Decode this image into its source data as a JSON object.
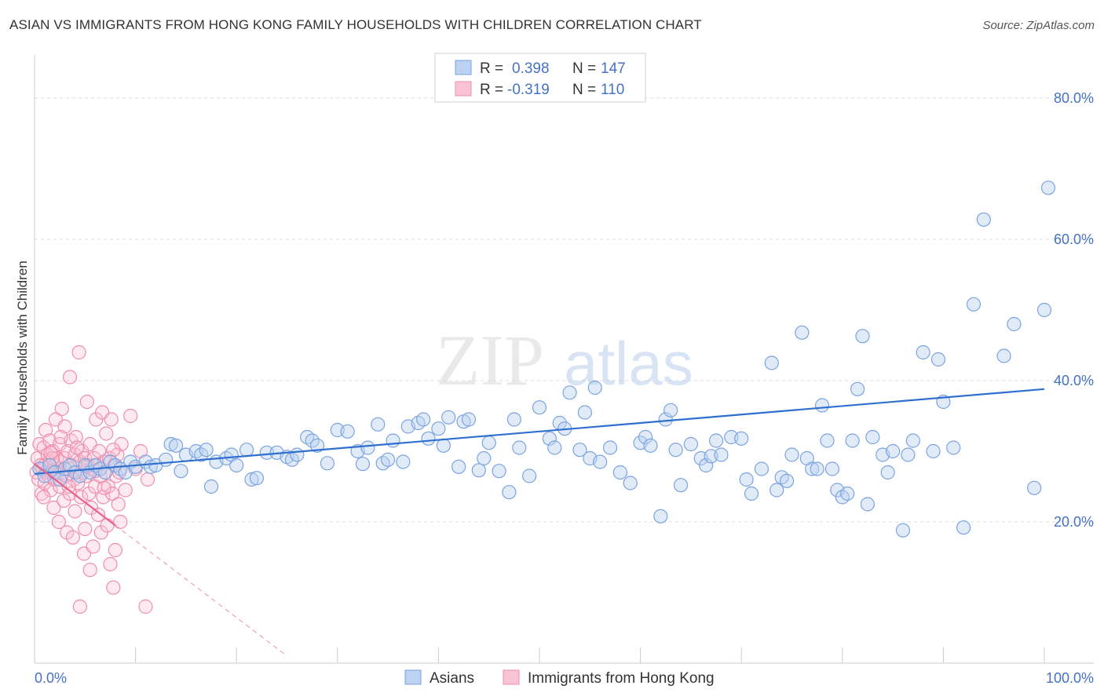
{
  "title": "ASIAN VS IMMIGRANTS FROM HONG KONG FAMILY HOUSEHOLDS WITH CHILDREN CORRELATION CHART",
  "source": "Source: ZipAtlas.com",
  "watermark": {
    "zip": "ZIP",
    "atlas": "atlas"
  },
  "chart_data": {
    "type": "scatter",
    "title": "ASIAN VS IMMIGRANTS FROM HONG KONG FAMILY HOUSEHOLDS WITH CHILDREN CORRELATION CHART",
    "xlabel": "",
    "ylabel": "Family Households with Children",
    "xlim": [
      0,
      100
    ],
    "ylim": [
      0,
      85
    ],
    "x_tick_labels": {
      "left": "0.0%",
      "right": "100.0%"
    },
    "y_ticks": [
      20,
      40,
      60,
      80
    ],
    "y_tick_labels": [
      "20.0%",
      "40.0%",
      "60.0%",
      "80.0%"
    ],
    "grid": true,
    "legend_position": "top-center",
    "stats": [
      {
        "r_label": "R =",
        "r_value": "0.398",
        "n_label": "N =",
        "n_value": "147"
      },
      {
        "r_label": "R =",
        "r_value": "-0.319",
        "n_label": "N =",
        "n_value": "110"
      }
    ],
    "series": [
      {
        "name": "Asians",
        "color": "#8fb3e8",
        "line_color": "#2f6fd0",
        "trend": {
          "x0": 0,
          "y0": 26.8,
          "x1": 100,
          "y1": 38.8,
          "dashed_extension": false
        },
        "points": [
          [
            0.5,
            27.5
          ],
          [
            1,
            26.5
          ],
          [
            1.5,
            28
          ],
          [
            2,
            27
          ],
          [
            2.5,
            26
          ],
          [
            3,
            27.5
          ],
          [
            3.5,
            28
          ],
          [
            4,
            27
          ],
          [
            4.5,
            26.5
          ],
          [
            5,
            28
          ],
          [
            5.5,
            27
          ],
          [
            6,
            28
          ],
          [
            6.5,
            27.5
          ],
          [
            7,
            27
          ],
          [
            7.5,
            28.5
          ],
          [
            8,
            28
          ],
          [
            8.5,
            27.5
          ],
          [
            9,
            27
          ],
          [
            9.5,
            28.5
          ],
          [
            10,
            27.8
          ],
          [
            11,
            28.5
          ],
          [
            11.5,
            27.8
          ],
          [
            12,
            28
          ],
          [
            13,
            28.8
          ],
          [
            13.5,
            31
          ],
          [
            14,
            30.8
          ],
          [
            14.5,
            27.2
          ],
          [
            15,
            29.5
          ],
          [
            16,
            30
          ],
          [
            16.5,
            29.5
          ],
          [
            17,
            30.2
          ],
          [
            17.5,
            25
          ],
          [
            18,
            28.5
          ],
          [
            19,
            29
          ],
          [
            19.5,
            29.5
          ],
          [
            20,
            28
          ],
          [
            21,
            30.2
          ],
          [
            21.5,
            26
          ],
          [
            22,
            26.2
          ],
          [
            23,
            29.8
          ],
          [
            24,
            29.8
          ],
          [
            25,
            29.2
          ],
          [
            25.5,
            28.8
          ],
          [
            26,
            29.5
          ],
          [
            27,
            32
          ],
          [
            27.5,
            31.5
          ],
          [
            28,
            30.8
          ],
          [
            29,
            28.3
          ],
          [
            30,
            33
          ],
          [
            31,
            32.8
          ],
          [
            32,
            30
          ],
          [
            32.5,
            28.2
          ],
          [
            33,
            30.5
          ],
          [
            34,
            33.8
          ],
          [
            34.5,
            28.3
          ],
          [
            35,
            28.8
          ],
          [
            35.5,
            31.5
          ],
          [
            36.5,
            28.5
          ],
          [
            37,
            33.5
          ],
          [
            38,
            34
          ],
          [
            38.5,
            34.5
          ],
          [
            39,
            31.8
          ],
          [
            40,
            33.2
          ],
          [
            40.5,
            30.8
          ],
          [
            41,
            34.8
          ],
          [
            42,
            27.8
          ],
          [
            42.5,
            34.2
          ],
          [
            43,
            34.5
          ],
          [
            44,
            27.3
          ],
          [
            44.5,
            29
          ],
          [
            45,
            31.2
          ],
          [
            46,
            27.2
          ],
          [
            47,
            24.2
          ],
          [
            47.5,
            34.5
          ],
          [
            48,
            30.5
          ],
          [
            49,
            26.5
          ],
          [
            50,
            36.2
          ],
          [
            51,
            31.8
          ],
          [
            51.5,
            30.5
          ],
          [
            52,
            34
          ],
          [
            52.5,
            33.2
          ],
          [
            53,
            38.3
          ],
          [
            54,
            30.2
          ],
          [
            54.5,
            35.5
          ],
          [
            55,
            29
          ],
          [
            55.5,
            39
          ],
          [
            56,
            28.5
          ],
          [
            57,
            30.5
          ],
          [
            58,
            27
          ],
          [
            59,
            25.5
          ],
          [
            60,
            31.2
          ],
          [
            60.5,
            32
          ],
          [
            61,
            30.8
          ],
          [
            62,
            20.8
          ],
          [
            62.5,
            34.5
          ],
          [
            63,
            35.8
          ],
          [
            63.5,
            30.2
          ],
          [
            64,
            25.2
          ],
          [
            65,
            31
          ],
          [
            66,
            29
          ],
          [
            66.5,
            28
          ],
          [
            67,
            29.3
          ],
          [
            67.5,
            31.5
          ],
          [
            68,
            29.5
          ],
          [
            69,
            32
          ],
          [
            70,
            31.8
          ],
          [
            70.5,
            26
          ],
          [
            71,
            24
          ],
          [
            72,
            27.5
          ],
          [
            73,
            42.5
          ],
          [
            73.5,
            24.5
          ],
          [
            74,
            26.3
          ],
          [
            74.5,
            25.8
          ],
          [
            75,
            29.5
          ],
          [
            76,
            46.8
          ],
          [
            76.5,
            29
          ],
          [
            77,
            27.5
          ],
          [
            77.5,
            27.5
          ],
          [
            78,
            36.5
          ],
          [
            78.5,
            31.5
          ],
          [
            79,
            27.5
          ],
          [
            79.5,
            24.5
          ],
          [
            80,
            23.5
          ],
          [
            80.5,
            24
          ],
          [
            81,
            31.5
          ],
          [
            81.5,
            38.8
          ],
          [
            82,
            46.3
          ],
          [
            82.5,
            22.5
          ],
          [
            83,
            32
          ],
          [
            84,
            29.5
          ],
          [
            84.5,
            27
          ],
          [
            85,
            30
          ],
          [
            86,
            18.8
          ],
          [
            86.5,
            29.5
          ],
          [
            87,
            31.5
          ],
          [
            88,
            44
          ],
          [
            89,
            30
          ],
          [
            89.5,
            43
          ],
          [
            90,
            37
          ],
          [
            91,
            30.5
          ],
          [
            92,
            19.2
          ],
          [
            93,
            50.8
          ],
          [
            94,
            62.8
          ],
          [
            96,
            43.5
          ],
          [
            97,
            48
          ],
          [
            99,
            24.8
          ],
          [
            100,
            50
          ],
          [
            102,
            67.3
          ]
        ]
      },
      {
        "name": "Immigrants from Hong Kong",
        "color": "#f4a7bd",
        "line_color": "#e8628c",
        "trend": {
          "x0": 0,
          "y0": 28.2,
          "x1": 8,
          "y1": 19.5,
          "dash_to_x": 25,
          "dashed_extension": true
        },
        "points": [
          [
            0.2,
            27
          ],
          [
            0.3,
            29
          ],
          [
            0.4,
            26
          ],
          [
            0.5,
            31
          ],
          [
            0.6,
            28
          ],
          [
            0.7,
            24
          ],
          [
            0.8,
            27.5
          ],
          [
            0.9,
            30.5
          ],
          [
            1,
            28
          ],
          [
            1,
            25.5
          ],
          [
            1.1,
            33
          ],
          [
            1.2,
            27
          ],
          [
            1.3,
            29.5
          ],
          [
            1.4,
            26.5
          ],
          [
            1.5,
            28.5
          ],
          [
            1.5,
            31.5
          ],
          [
            1.6,
            24.5
          ],
          [
            1.7,
            27
          ],
          [
            1.8,
            30
          ],
          [
            1.9,
            22
          ],
          [
            2,
            28
          ],
          [
            2,
            26
          ],
          [
            2.1,
            34.5
          ],
          [
            2.2,
            29
          ],
          [
            2.3,
            27
          ],
          [
            2.4,
            20
          ],
          [
            2.5,
            31
          ],
          [
            2.5,
            25
          ],
          [
            2.6,
            28.5
          ],
          [
            2.7,
            36
          ],
          [
            2.8,
            27
          ],
          [
            2.9,
            23
          ],
          [
            3,
            29
          ],
          [
            3,
            33.5
          ],
          [
            3.1,
            26.5
          ],
          [
            3.2,
            18.5
          ],
          [
            3.3,
            30
          ],
          [
            3.4,
            27.5
          ],
          [
            3.5,
            40.5
          ],
          [
            3.5,
            24
          ],
          [
            3.6,
            31.5
          ],
          [
            3.7,
            28
          ],
          [
            3.8,
            17.8
          ],
          [
            3.9,
            26
          ],
          [
            4,
            29.5
          ],
          [
            4,
            21.5
          ],
          [
            4.1,
            32
          ],
          [
            4.2,
            27
          ],
          [
            4.3,
            25.5
          ],
          [
            4.4,
            44
          ],
          [
            4.5,
            28.5
          ],
          [
            4.5,
            8
          ],
          [
            4.6,
            23.5
          ],
          [
            4.7,
            30
          ],
          [
            4.8,
            27
          ],
          [
            4.9,
            15.5
          ],
          [
            5,
            29
          ],
          [
            5,
            19
          ],
          [
            5.1,
            26.5
          ],
          [
            5.2,
            37
          ],
          [
            5.3,
            28
          ],
          [
            5.4,
            24
          ],
          [
            5.5,
            13.2
          ],
          [
            5.5,
            31
          ],
          [
            5.6,
            22
          ],
          [
            5.7,
            27.5
          ],
          [
            5.8,
            16.5
          ],
          [
            5.9,
            29
          ],
          [
            6,
            25
          ],
          [
            6.1,
            34.5
          ],
          [
            6.2,
            28
          ],
          [
            6.3,
            21
          ],
          [
            6.4,
            30
          ],
          [
            6.5,
            26.5
          ],
          [
            6.6,
            18.5
          ],
          [
            6.7,
            35.5
          ],
          [
            6.8,
            23.5
          ],
          [
            6.9,
            28.5
          ],
          [
            7,
            27
          ],
          [
            7.1,
            32.5
          ],
          [
            7.2,
            19.5
          ],
          [
            7.3,
            25
          ],
          [
            7.4,
            29
          ],
          [
            7.5,
            14
          ],
          [
            7.6,
            34.5
          ],
          [
            7.7,
            24
          ],
          [
            7.8,
            10.7
          ],
          [
            7.9,
            28
          ],
          [
            8,
            16
          ],
          [
            8.1,
            26.5
          ],
          [
            8.2,
            29.5
          ],
          [
            8.3,
            22.5
          ],
          [
            8.4,
            27
          ],
          [
            8.5,
            20
          ],
          [
            8.6,
            31
          ],
          [
            9,
            24.5
          ],
          [
            9.5,
            35
          ],
          [
            10,
            27.5
          ],
          [
            10.5,
            30
          ],
          [
            11,
            8
          ],
          [
            11.2,
            26
          ],
          [
            1.8,
            29
          ],
          [
            2.6,
            32
          ],
          [
            3.4,
            25
          ],
          [
            4.2,
            30.5
          ],
          [
            5.1,
            27.8
          ],
          [
            6.0,
            27.2
          ],
          [
            6.9,
            24.8
          ],
          [
            7.8,
            30.2
          ],
          [
            0.9,
            23.5
          ],
          [
            1.6,
            29.8
          ]
        ]
      }
    ]
  },
  "legend_bottom": [
    {
      "label": "Asians"
    },
    {
      "label": "Immigrants from Hong Kong"
    }
  ],
  "colors": {
    "blue_fill": "#bcd2f0",
    "blue_stroke": "#7aa3e0",
    "blue_line": "#2f6fd0",
    "pink_fill": "#f8c4d3",
    "pink_stroke": "#f08cab",
    "pink_line": "#e8628c",
    "text_blue": "#4472c4",
    "grid": "#dcdcdc"
  }
}
